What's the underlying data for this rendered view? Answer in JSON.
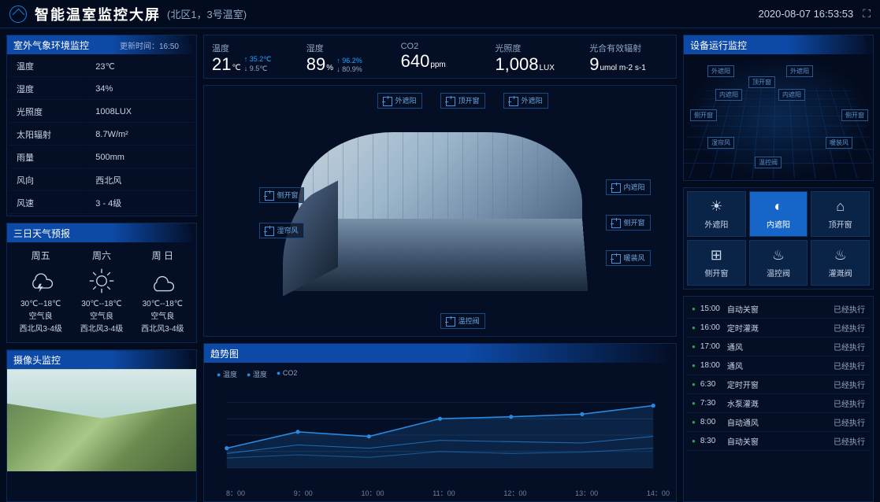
{
  "header": {
    "title": "智能温室监控大屏",
    "subtitle": "(北区1，3号温室)",
    "datetime": "2020-08-07 16:53:53"
  },
  "env": {
    "hdr": "室外气象环境监控",
    "upd": "更新时间：16:50",
    "rows": [
      [
        "温度",
        "23℃"
      ],
      [
        "湿度",
        "34%"
      ],
      [
        "光照度",
        "1008LUX"
      ],
      [
        "太阳辐射",
        "8.7W/m²"
      ],
      [
        "雨量",
        "500mm"
      ],
      [
        "风向",
        "西北风"
      ],
      [
        "风速",
        "3 - 4级"
      ]
    ]
  },
  "forecast": {
    "hdr": "三日天气预报",
    "days": [
      {
        "day": "周五",
        "icon": "storm",
        "temp": "30℃--18℃",
        "air": "空气良",
        "wind": "西北风3-4级"
      },
      {
        "day": "周六",
        "icon": "sun",
        "temp": "30℃--18℃",
        "air": "空气良",
        "wind": "西北风3-4级"
      },
      {
        "day": "周 日",
        "icon": "cloud",
        "temp": "30℃--18℃",
        "air": "空气良",
        "wind": "西北风3-4级"
      }
    ]
  },
  "camera": {
    "hdr": "摄像头监控"
  },
  "metrics": [
    {
      "label": "温度",
      "value": "21",
      "unit": "℃",
      "hi": "35.2℃",
      "lo": "9.5℃"
    },
    {
      "label": "湿度",
      "value": "89",
      "unit": "%",
      "hi": "96.2%",
      "lo": "80.9%"
    },
    {
      "label": "CO2",
      "value": "640",
      "unit": "ppm"
    },
    {
      "label": "光照度",
      "value": "1,008",
      "unit": "LUX"
    },
    {
      "label": "光合有效辐射",
      "value": "9",
      "unit": "umol m-2 s-1"
    }
  ],
  "gh_callouts": {
    "top": [
      "外遮阳",
      "顶开窗",
      "外遮阳"
    ],
    "left": [
      "侧开窗",
      "湿帘风"
    ],
    "right": [
      "内遮阳",
      "侧开窗",
      "暖装风"
    ],
    "bottom": [
      "温控阀"
    ]
  },
  "trend": {
    "hdr": "趋势图",
    "legend": [
      "温度",
      "湿度",
      "CO2"
    ],
    "colors": {
      "l1": "#2a8ae0",
      "grid": "#16355c",
      "fill": "rgba(42,138,224,0.18)"
    },
    "x": [
      "8：00",
      "9：00",
      "10：00",
      "11：00",
      "12：00",
      "13：00",
      "14：00"
    ],
    "series": {
      "temp": [
        30,
        55,
        48,
        75,
        78,
        82,
        95
      ],
      "hum": [
        22,
        35,
        30,
        42,
        40,
        38,
        48
      ],
      "co2": [
        15,
        20,
        16,
        25,
        22,
        24,
        30
      ]
    }
  },
  "device": {
    "hdr": "设备运行监控",
    "labels": [
      "外遮阳",
      "外遮阳",
      "顶开窗",
      "内遮阳",
      "内遮阳",
      "侧开窗",
      "侧开窗",
      "湿帘风",
      "暖装风",
      "温控阀"
    ]
  },
  "controls": [
    {
      "label": "外遮阳",
      "active": false
    },
    {
      "label": "内遮阳",
      "active": true
    },
    {
      "label": "顶开窗",
      "active": false
    },
    {
      "label": "侧开窗",
      "active": false
    },
    {
      "label": "温控阀",
      "active": false
    },
    {
      "label": "灌溉阀",
      "active": false
    }
  ],
  "control_icons": [
    "☀",
    "◐",
    "⌂",
    "⊞",
    "♨",
    "♨"
  ],
  "log": [
    {
      "t": "15:00",
      "a": "自动关窗",
      "s": "已经执行"
    },
    {
      "t": "16:00",
      "a": "定时灌溉",
      "s": "已经执行"
    },
    {
      "t": "17:00",
      "a": "通风",
      "s": "已经执行"
    },
    {
      "t": "18:00",
      "a": "通风",
      "s": "已经执行"
    },
    {
      "t": "6:30",
      "a": "定时开窗",
      "s": "已经执行"
    },
    {
      "t": "7:30",
      "a": "水泵灌溉",
      "s": "已经执行"
    },
    {
      "t": "8:00",
      "a": "自动通风",
      "s": "已经执行"
    },
    {
      "t": "8:30",
      "a": "自动关窗",
      "s": "已经执行"
    }
  ]
}
